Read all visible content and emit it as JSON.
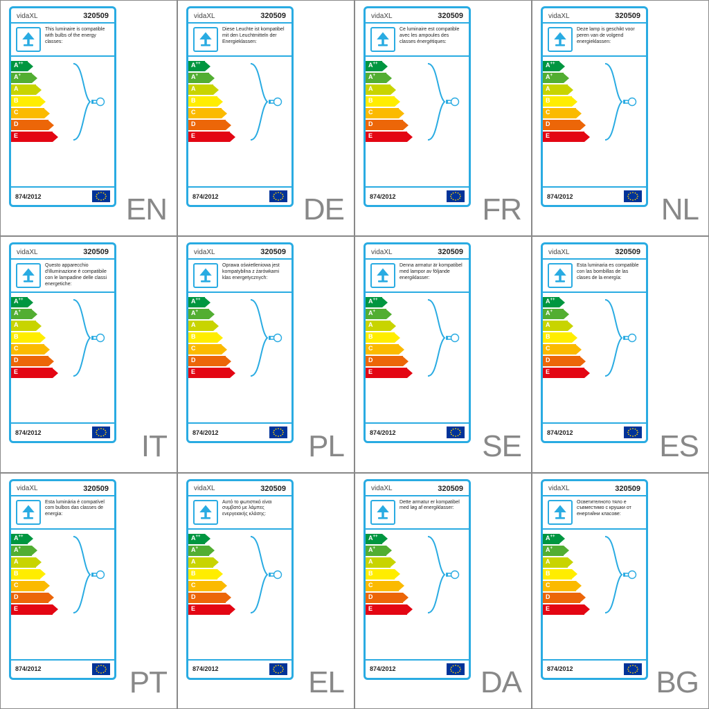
{
  "accent": "#29abe2",
  "brand": "vidaXL",
  "model": "320509",
  "regulation": "874/2012",
  "energy_classes": [
    {
      "label": "A",
      "sup": "++",
      "color": "#009640",
      "w": 24
    },
    {
      "label": "A",
      "sup": "+",
      "color": "#52ae32",
      "w": 30
    },
    {
      "label": "A",
      "sup": "",
      "color": "#c8d400",
      "w": 36
    },
    {
      "label": "B",
      "sup": "",
      "color": "#ffed00",
      "w": 42
    },
    {
      "label": "C",
      "sup": "",
      "color": "#fbba00",
      "w": 48
    },
    {
      "label": "D",
      "sup": "",
      "color": "#ec6608",
      "w": 54
    },
    {
      "label": "E",
      "sup": "",
      "color": "#e30613",
      "w": 60
    }
  ],
  "cells": [
    {
      "lang": "EN",
      "desc": "This luminaire is compatible with bulbs of the energy classes:"
    },
    {
      "lang": "DE",
      "desc": "Diese Leuchte ist kompatibel mit den Leuchtmitteln der Energieklassen:"
    },
    {
      "lang": "FR",
      "desc": "Ce luminaire est compatible avec les ampoules des classes énergétiques:"
    },
    {
      "lang": "NL",
      "desc": "Deze lamp is geschikt voor peren van de volgend energieklassen:"
    },
    {
      "lang": "IT",
      "desc": "Questo apparecchio d'illuminazione è compatibile con le lampadine delle classi energetiche:"
    },
    {
      "lang": "PL",
      "desc": "Oprawa oświetleniowa jest kompatybilna z żarówkami klas energetycznych:"
    },
    {
      "lang": "SE",
      "desc": "Denna armatur är kompatibel med lampor av följande energiklasser:"
    },
    {
      "lang": "ES",
      "desc": "Esta luminaria es compatible con las bombillas de las clases de la energía:"
    },
    {
      "lang": "PT",
      "desc": "Esta luminária é compatível com bulbos das classes de energia:"
    },
    {
      "lang": "EL",
      "desc": "Αυτό το φωτιστικό είναι συμβατό με λάμπες ενεργειακής κλάσης:"
    },
    {
      "lang": "DA",
      "desc": "Dette armatur er kompatibel med løg af energiklasser:"
    },
    {
      "lang": "BG",
      "desc": "Осветителното тяло е съвместимо с крушки от енергийни класове:"
    }
  ],
  "flag": {
    "bg": "#003399",
    "star": "#ffcc00"
  }
}
